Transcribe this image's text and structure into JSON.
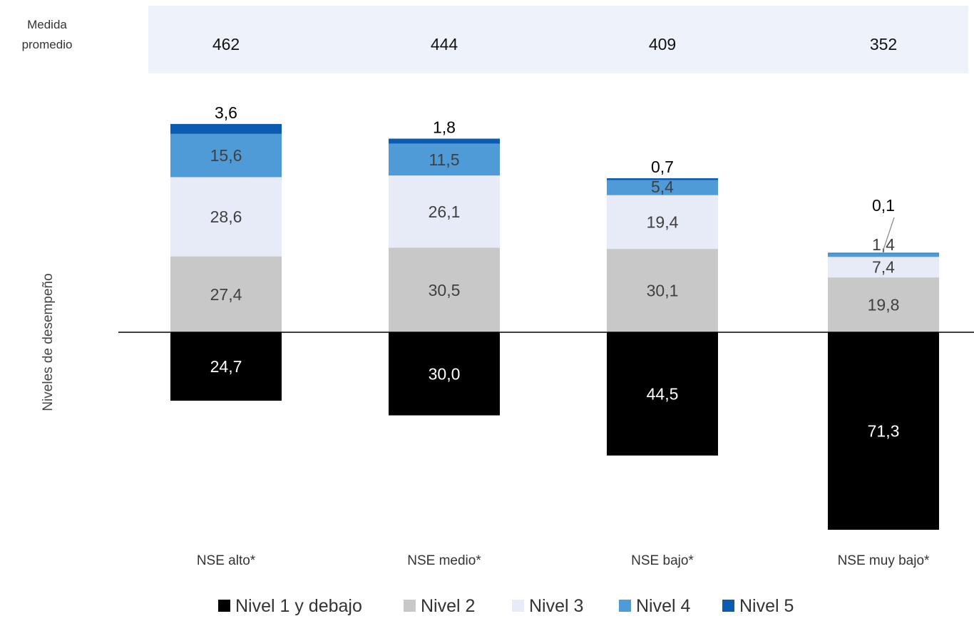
{
  "chart_data": {
    "type": "bar",
    "stacked": "diverging",
    "ylabel": "Niveles de desempeño",
    "categories": [
      "NSE alto*",
      "NSE medio*",
      "NSE bajo*",
      "NSE muy bajo*"
    ],
    "mean_row": {
      "label_line1": "Medida",
      "label_line2": "promedio",
      "values": [
        "462",
        "444",
        "409",
        "352"
      ]
    },
    "series": [
      {
        "name": "Nivel 1 y debajo",
        "color": "#000000",
        "direction": "below",
        "values": [
          24.7,
          30.0,
          44.5,
          71.3
        ],
        "labels": [
          "24,7",
          "30,0",
          "44,5",
          "71,3"
        ]
      },
      {
        "name": "Nivel 2",
        "color": "#c8c8c8",
        "direction": "above",
        "values": [
          27.4,
          30.5,
          30.1,
          19.8
        ],
        "labels": [
          "27,4",
          "30,5",
          "30,1",
          "19,8"
        ]
      },
      {
        "name": "Nivel 3",
        "color": "#e6ebf7",
        "direction": "above",
        "values": [
          28.6,
          26.1,
          19.4,
          7.4
        ],
        "labels": [
          "28,6",
          "26,1",
          "19,4",
          "7,4"
        ]
      },
      {
        "name": "Nivel 4",
        "color": "#4f9bd8",
        "direction": "above",
        "values": [
          15.6,
          11.5,
          5.4,
          1.4
        ],
        "labels": [
          "15,6",
          "11,5",
          "5,4",
          "1,4"
        ]
      },
      {
        "name": "Nivel 5",
        "color": "#0b5cb0",
        "direction": "above",
        "values": [
          3.6,
          1.8,
          0.7,
          0.1
        ],
        "labels": [
          "3,6",
          "1,8",
          "0,7",
          "0,1"
        ]
      }
    ],
    "legend_position": "bottom",
    "grid": false
  }
}
